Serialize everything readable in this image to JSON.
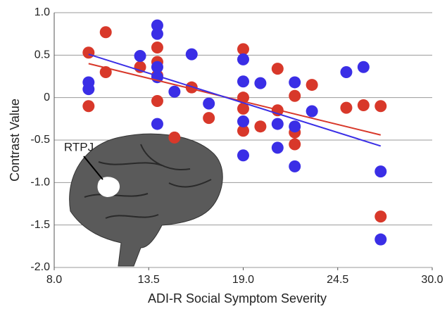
{
  "chart_data": {
    "type": "scatter",
    "xlabel": "ADI-R Social Symptom Severity",
    "ylabel": "Contrast Value",
    "annotation": "RTPJ",
    "xlim": [
      8,
      30
    ],
    "xticks": [
      {
        "value": 8,
        "label": "8.0"
      },
      {
        "value": 13.5,
        "label": "13.5"
      },
      {
        "value": 19,
        "label": "19.0"
      },
      {
        "value": 24.5,
        "label": "24.5"
      },
      {
        "value": 30,
        "label": "30.0"
      }
    ],
    "ylim": [
      -2,
      1
    ],
    "yticks": [
      {
        "value": -2,
        "label": "-2.0"
      },
      -1.5,
      {
        "value": -1,
        "label": "-1.0"
      },
      -0.5,
      0,
      0.5,
      {
        "value": 1,
        "label": "1.0"
      }
    ],
    "grid": true,
    "series": [
      {
        "color": "#d8382a",
        "x": [
          10,
          10,
          11,
          11,
          13,
          14,
          14,
          14,
          14,
          15,
          16,
          17,
          19,
          19,
          19,
          19,
          20,
          21,
          21,
          22,
          22,
          22,
          23,
          25,
          26,
          27,
          27
        ],
        "values": [
          0.53,
          -0.1,
          0.77,
          0.3,
          0.36,
          0.59,
          0.42,
          0.26,
          -0.04,
          -0.47,
          0.12,
          -0.24,
          0.57,
          0,
          -0.13,
          -0.39,
          -0.34,
          0.34,
          -0.15,
          0.02,
          -0.41,
          -0.55,
          0.15,
          -0.12,
          -0.09,
          -0.1,
          -1.4
        ]
      },
      {
        "color": "#3a2ee6",
        "x": [
          10,
          10,
          13,
          14,
          14,
          14,
          14,
          14,
          15,
          16,
          17,
          19,
          19,
          19,
          19,
          20,
          21,
          21,
          22,
          22,
          22,
          23,
          25,
          26,
          27,
          27
        ],
        "values": [
          0.18,
          0.1,
          0.49,
          0.85,
          0.75,
          0.36,
          0.24,
          -0.31,
          0.07,
          0.51,
          -0.07,
          0.45,
          0.19,
          -0.28,
          -0.68,
          0.17,
          -0.31,
          -0.59,
          0.18,
          -0.34,
          -0.81,
          -0.16,
          0.3,
          0.36,
          -0.87,
          -1.67
        ]
      }
    ],
    "fits": [
      {
        "color": "#d8382a",
        "x": [
          10,
          27
        ],
        "values": [
          0.4,
          -0.44
        ]
      },
      {
        "color": "#3a2ee6",
        "x": [
          10,
          27
        ],
        "values": [
          0.51,
          -0.57
        ]
      }
    ]
  }
}
